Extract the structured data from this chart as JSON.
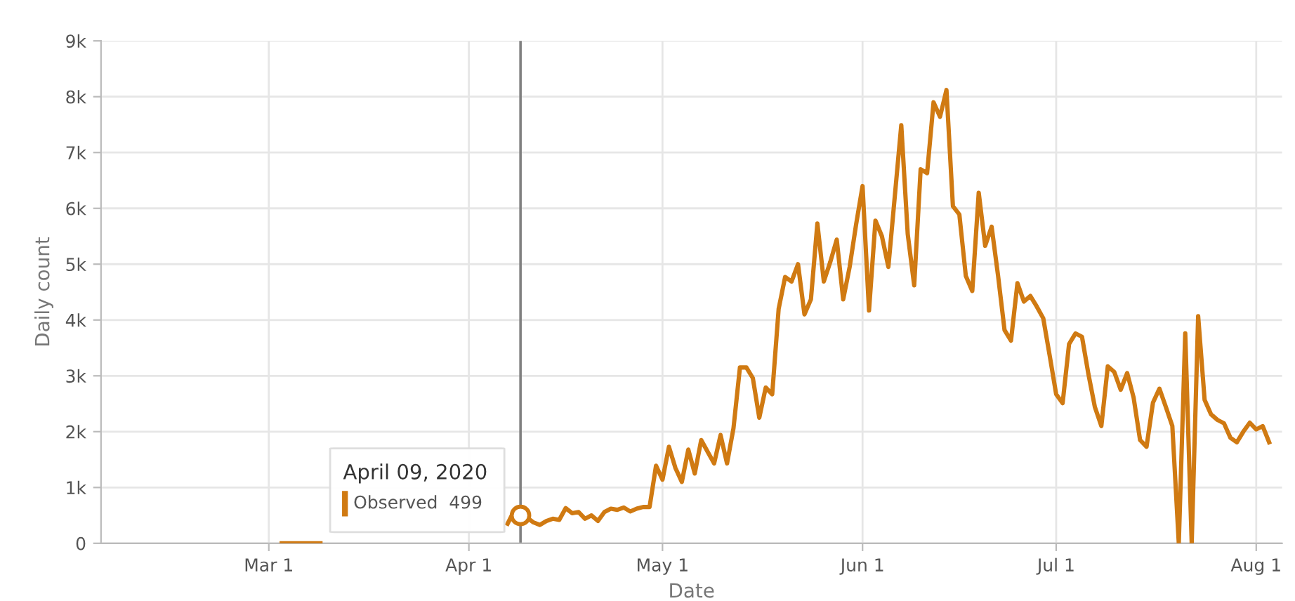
{
  "chart_data": {
    "type": "line",
    "xlabel": "Date",
    "ylabel": "Daily count",
    "series": [
      {
        "color": "#d07a12",
        "x": [
          "2020-03-03",
          "2020-03-04",
          "2020-03-05",
          "2020-03-06",
          "2020-03-07",
          "2020-03-08",
          "2020-03-09",
          "2020-03-10",
          "2020-04-07",
          "2020-04-08",
          "2020-04-09",
          "2020-04-10",
          "2020-04-11",
          "2020-04-12",
          "2020-04-13",
          "2020-04-14",
          "2020-04-15",
          "2020-04-16",
          "2020-04-17",
          "2020-04-18",
          "2020-04-19",
          "2020-04-20",
          "2020-04-21",
          "2020-04-22",
          "2020-04-23",
          "2020-04-24",
          "2020-04-25",
          "2020-04-26",
          "2020-04-27",
          "2020-04-28",
          "2020-04-29",
          "2020-04-30",
          "2020-05-01",
          "2020-05-02",
          "2020-05-03",
          "2020-05-04",
          "2020-05-05",
          "2020-05-06",
          "2020-05-07",
          "2020-05-08",
          "2020-05-09",
          "2020-05-10",
          "2020-05-11",
          "2020-05-12",
          "2020-05-13",
          "2020-05-14",
          "2020-05-15",
          "2020-05-16",
          "2020-05-17",
          "2020-05-18",
          "2020-05-19",
          "2020-05-20",
          "2020-05-21",
          "2020-05-22",
          "2020-05-23",
          "2020-05-24",
          "2020-05-25",
          "2020-05-26",
          "2020-05-27",
          "2020-05-28",
          "2020-05-29",
          "2020-05-30",
          "2020-05-31",
          "2020-06-01",
          "2020-06-02",
          "2020-06-03",
          "2020-06-04",
          "2020-06-05",
          "2020-06-06",
          "2020-06-07",
          "2020-06-08",
          "2020-06-09",
          "2020-06-10",
          "2020-06-11",
          "2020-06-12",
          "2020-06-13",
          "2020-06-14",
          "2020-06-15",
          "2020-06-16",
          "2020-06-17",
          "2020-06-18",
          "2020-06-19",
          "2020-06-20",
          "2020-06-21",
          "2020-06-22",
          "2020-06-23",
          "2020-06-24",
          "2020-06-25",
          "2020-06-26",
          "2020-06-27",
          "2020-06-28",
          "2020-06-29",
          "2020-06-30",
          "2020-07-01",
          "2020-07-02",
          "2020-07-03",
          "2020-07-04",
          "2020-07-05",
          "2020-07-06",
          "2020-07-07",
          "2020-07-08",
          "2020-07-09",
          "2020-07-10",
          "2020-07-11",
          "2020-07-12",
          "2020-07-13",
          "2020-07-14",
          "2020-07-15",
          "2020-07-16",
          "2020-07-17",
          "2020-07-18",
          "2020-07-19",
          "2020-07-20",
          "2020-07-21",
          "2020-07-22",
          "2020-07-23",
          "2020-07-24",
          "2020-07-25",
          "2020-07-26",
          "2020-07-27",
          "2020-07-28",
          "2020-07-29",
          "2020-07-30",
          "2020-07-31",
          "2020-08-01",
          "2020-08-02",
          "2020-08-03"
        ],
        "values": [
          0,
          0,
          0,
          0,
          0,
          0,
          0,
          null,
          350,
          580,
          499,
          460,
          375,
          330,
          400,
          440,
          420,
          630,
          540,
          560,
          440,
          500,
          400,
          560,
          620,
          600,
          640,
          570,
          620,
          650,
          650,
          1390,
          1140,
          1730,
          1350,
          1100,
          1680,
          1250,
          1850,
          1640,
          1430,
          1940,
          1430,
          2060,
          3150,
          3150,
          2960,
          2250,
          2790,
          2670,
          4200,
          4770,
          4690,
          5000,
          4100,
          4370,
          5730,
          4690,
          5040,
          5440,
          4370,
          4950,
          5710,
          6400,
          4170,
          5780,
          5500,
          4950,
          6220,
          7490,
          5540,
          4620,
          6700,
          6630,
          7900,
          7640,
          8120,
          6040,
          5890,
          4790,
          4520,
          6280,
          5330,
          5670,
          4790,
          3820,
          3630,
          4660,
          4330,
          4430,
          4240,
          4030,
          3360,
          2670,
          2510,
          3570,
          3760,
          3700,
          3030,
          2440,
          2100,
          3170,
          3070,
          2750,
          3050,
          2610,
          1850,
          1730,
          2520,
          2770,
          2440,
          2100,
          0,
          3760,
          0,
          4070,
          2570,
          2310,
          2210,
          2150,
          1890,
          1810,
          2000,
          2160,
          2040,
          2100,
          1810
        ]
      }
    ],
    "xlim": [
      "2020-02-04",
      "2020-08-05"
    ],
    "xticks": [
      {
        "value": "2020-03-01",
        "label": "Mar 1"
      },
      {
        "value": "2020-04-01",
        "label": "Apr 1"
      },
      {
        "value": "2020-05-01",
        "label": "May 1"
      },
      {
        "value": "2020-06-01",
        "label": "Jun 1"
      },
      {
        "value": "2020-07-01",
        "label": "Jul 1"
      },
      {
        "value": "2020-08-01",
        "label": "Aug 1"
      }
    ],
    "ylim": [
      0,
      9000
    ],
    "yticks": [
      0,
      {
        "value": 1000,
        "label": "1k"
      },
      {
        "value": 2000,
        "label": "2k"
      },
      {
        "value": 3000,
        "label": "3k"
      },
      {
        "value": 4000,
        "label": "4k"
      },
      {
        "value": 5000,
        "label": "5k"
      },
      {
        "value": 6000,
        "label": "6k"
      },
      {
        "value": 7000,
        "label": "7k"
      },
      {
        "value": 8000,
        "label": "8k"
      },
      {
        "value": 9000,
        "label": "9k"
      }
    ],
    "grid": true,
    "line_style": "solid",
    "marker": "none",
    "ref_lines": [
      {
        "axis": "x",
        "value": "2020-04-09",
        "color": "#808080"
      }
    ],
    "annotations": [
      {
        "text": "April 09, 2020",
        "x": "2020-04-09",
        "y": 499
      },
      "Observed  499"
    ]
  }
}
